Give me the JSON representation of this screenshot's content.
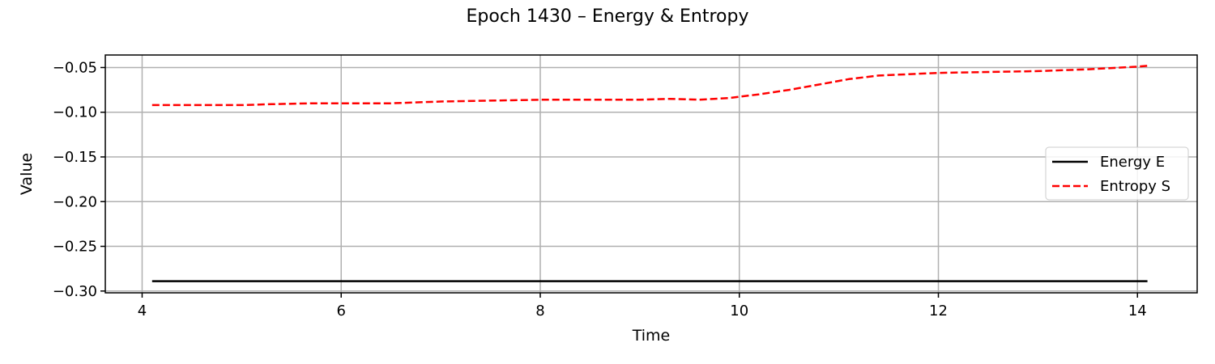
{
  "chart_data": {
    "type": "line",
    "title": "Epoch 1430 – Energy & Entropy",
    "xlabel": "Time",
    "ylabel": "Value",
    "xlim": [
      3.63,
      14.6
    ],
    "ylim": [
      -0.302,
      -0.036
    ],
    "xticks": [
      4,
      6,
      8,
      10,
      12,
      14
    ],
    "xtick_labels": [
      "4",
      "6",
      "8",
      "10",
      "12",
      "14"
    ],
    "yticks": [
      -0.05,
      -0.1,
      -0.15,
      -0.2,
      -0.25,
      -0.3
    ],
    "ytick_labels": [
      "−0.05",
      "−0.10",
      "−0.15",
      "−0.20",
      "−0.25",
      "−0.30"
    ],
    "grid": true,
    "legend_position": "center-right",
    "series": [
      {
        "name": "Energy E",
        "color": "#000000",
        "style": "solid",
        "x": [
          4.1,
          5.0,
          6.0,
          7.0,
          8.0,
          9.0,
          10.0,
          11.0,
          12.0,
          13.0,
          14.1
        ],
        "y": [
          -0.289,
          -0.289,
          -0.289,
          -0.289,
          -0.289,
          -0.289,
          -0.289,
          -0.289,
          -0.289,
          -0.289,
          -0.289
        ]
      },
      {
        "name": "Entropy S",
        "color": "#ff0000",
        "style": "dashed",
        "x": [
          4.1,
          4.5,
          5.0,
          5.3,
          5.7,
          6.0,
          6.5,
          7.0,
          7.5,
          8.0,
          8.5,
          9.0,
          9.3,
          9.6,
          9.9,
          10.2,
          10.5,
          10.8,
          11.1,
          11.4,
          11.6,
          12.0,
          12.5,
          13.0,
          13.5,
          14.0,
          14.1
        ],
        "y": [
          -0.092,
          -0.092,
          -0.092,
          -0.091,
          -0.09,
          -0.09,
          -0.09,
          -0.088,
          -0.087,
          -0.086,
          -0.086,
          -0.086,
          -0.085,
          -0.086,
          -0.084,
          -0.08,
          -0.075,
          -0.069,
          -0.063,
          -0.059,
          -0.058,
          -0.056,
          -0.055,
          -0.054,
          -0.052,
          -0.049,
          -0.048
        ]
      }
    ]
  }
}
